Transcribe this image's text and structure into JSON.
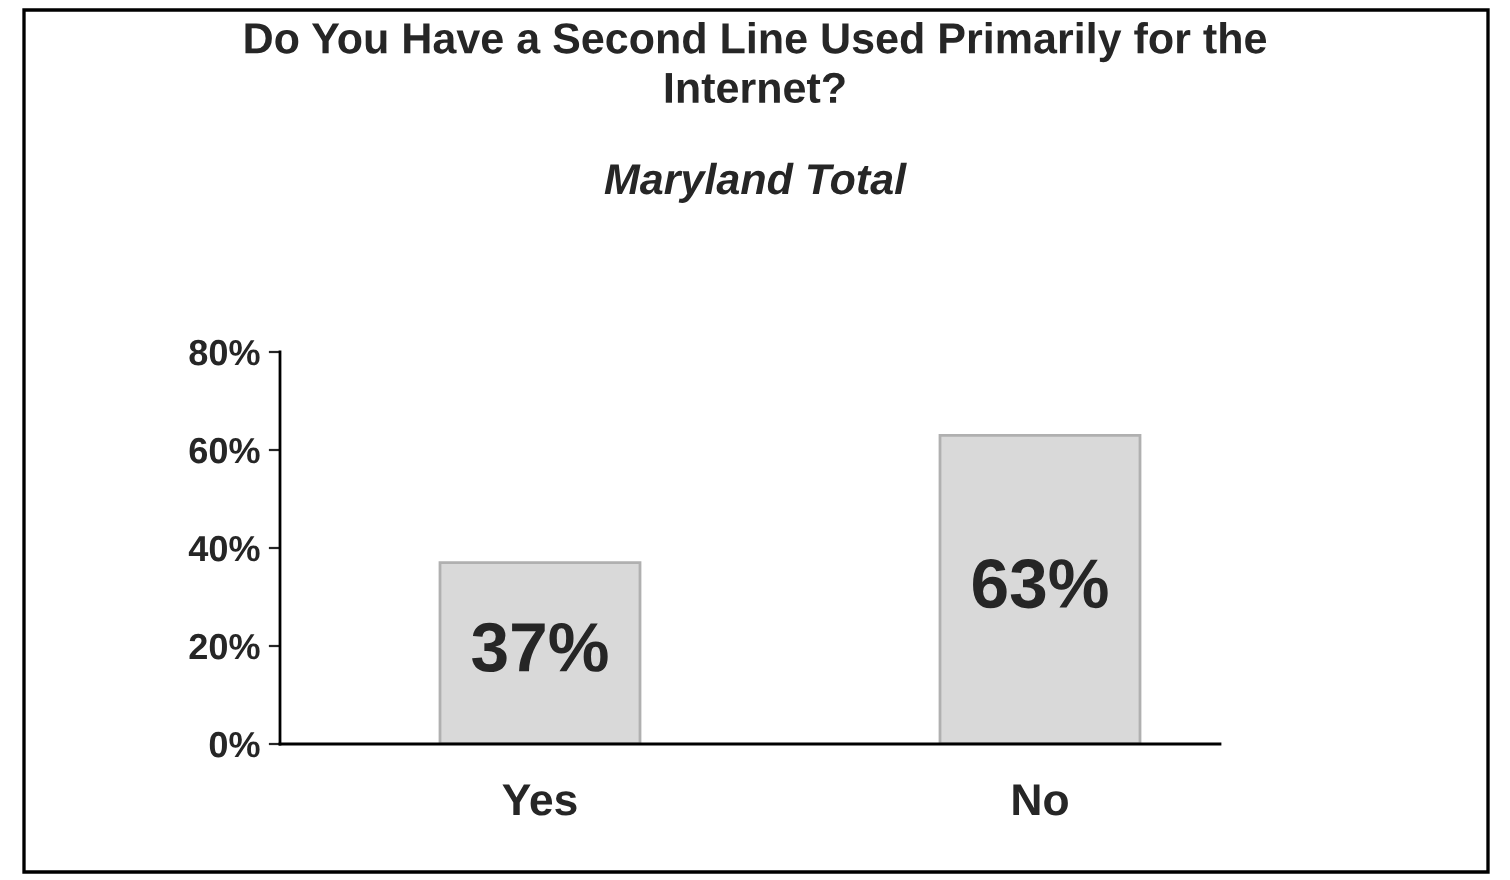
{
  "chart_data": {
    "type": "bar",
    "title": "Do You Have a Second Line Used Primarily for the Internet?",
    "subtitle": "Maryland Total",
    "categories": [
      "Yes",
      "No"
    ],
    "values": [
      37,
      63
    ],
    "colors": [
      "#d9d9d9",
      "#d9d9d9"
    ],
    "value_labels": [
      "37%",
      "63%"
    ],
    "ylim": [
      0,
      80
    ],
    "yticks": [
      {
        "value": 0,
        "label": "0%"
      },
      {
        "value": 20,
        "label": "20%"
      },
      {
        "value": 40,
        "label": "40%"
      },
      {
        "value": 60,
        "label": "60%"
      },
      {
        "value": 80,
        "label": "80%"
      }
    ]
  }
}
